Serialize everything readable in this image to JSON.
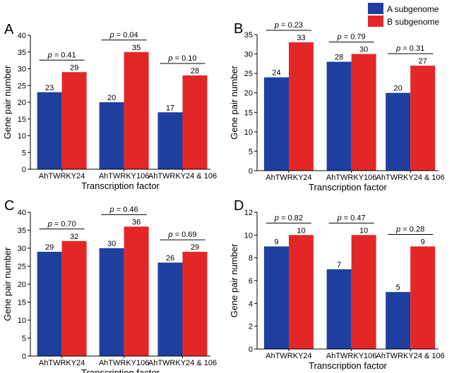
{
  "legend": {
    "items": [
      {
        "label": "A subgenome",
        "color": "#1f3f9f"
      },
      {
        "label": "B subgenome",
        "color": "#e32726"
      }
    ]
  },
  "chart_data": [
    {
      "type": "bar",
      "panel_label": "A",
      "categories": [
        "AhTWRKY24",
        "AhTWRKY106",
        "AhTWRKY24 & 106"
      ],
      "series": [
        {
          "name": "A subgenome",
          "values": [
            23,
            20,
            17
          ]
        },
        {
          "name": "B subgenome",
          "values": [
            29,
            35,
            28
          ]
        }
      ],
      "p_values": [
        "0.41",
        "0.04",
        "0.10"
      ],
      "xlabel": "Transcription factor",
      "ylabel": "Gene pair number",
      "ylim": [
        0,
        40
      ],
      "yticks": [
        0,
        5,
        10,
        15,
        20,
        25,
        30,
        35,
        40
      ],
      "grid": false
    },
    {
      "type": "bar",
      "panel_label": "B",
      "categories": [
        "AhTWRKY24",
        "AhTWRKY106",
        "AhTWRKY24 & 106"
      ],
      "series": [
        {
          "name": "A subgenome",
          "values": [
            24,
            28,
            20
          ]
        },
        {
          "name": "B subgenome",
          "values": [
            33,
            30,
            27
          ]
        }
      ],
      "p_values": [
        "0.23",
        "0.79",
        "0.31"
      ],
      "xlabel": "Transcription factor",
      "ylabel": "Gene pair number",
      "ylim": [
        0,
        35
      ],
      "yticks": [
        0,
        5,
        10,
        15,
        20,
        25,
        30,
        35
      ],
      "grid": false
    },
    {
      "type": "bar",
      "panel_label": "C",
      "categories": [
        "AhTWRKY24",
        "AhTWRKY106",
        "AhTWRKY24 & 106"
      ],
      "series": [
        {
          "name": "A subgenome",
          "values": [
            29,
            30,
            26
          ]
        },
        {
          "name": "B subgenome",
          "values": [
            32,
            36,
            29
          ]
        }
      ],
      "p_values": [
        "0.70",
        "0.46",
        "0.69"
      ],
      "xlabel": "Transcription factor",
      "ylabel": "Gene pair number",
      "ylim": [
        0,
        40
      ],
      "yticks": [
        0,
        5,
        10,
        15,
        20,
        25,
        30,
        35,
        40
      ],
      "grid": false
    },
    {
      "type": "bar",
      "panel_label": "D",
      "categories": [
        "AhTWRKY24",
        "AhTWRKY106",
        "AhTWRKY24 & 106"
      ],
      "series": [
        {
          "name": "A subgenome",
          "values": [
            9,
            7,
            5
          ]
        },
        {
          "name": "B subgenome",
          "values": [
            10,
            10,
            9
          ]
        }
      ],
      "p_values": [
        "0.82",
        "0.47",
        "0.28"
      ],
      "xlabel": "Transcription factor",
      "ylabel": "Gene pair number",
      "ylim": [
        0,
        12
      ],
      "yticks": [
        0,
        2,
        4,
        6,
        8,
        10,
        12
      ],
      "grid": false
    }
  ]
}
